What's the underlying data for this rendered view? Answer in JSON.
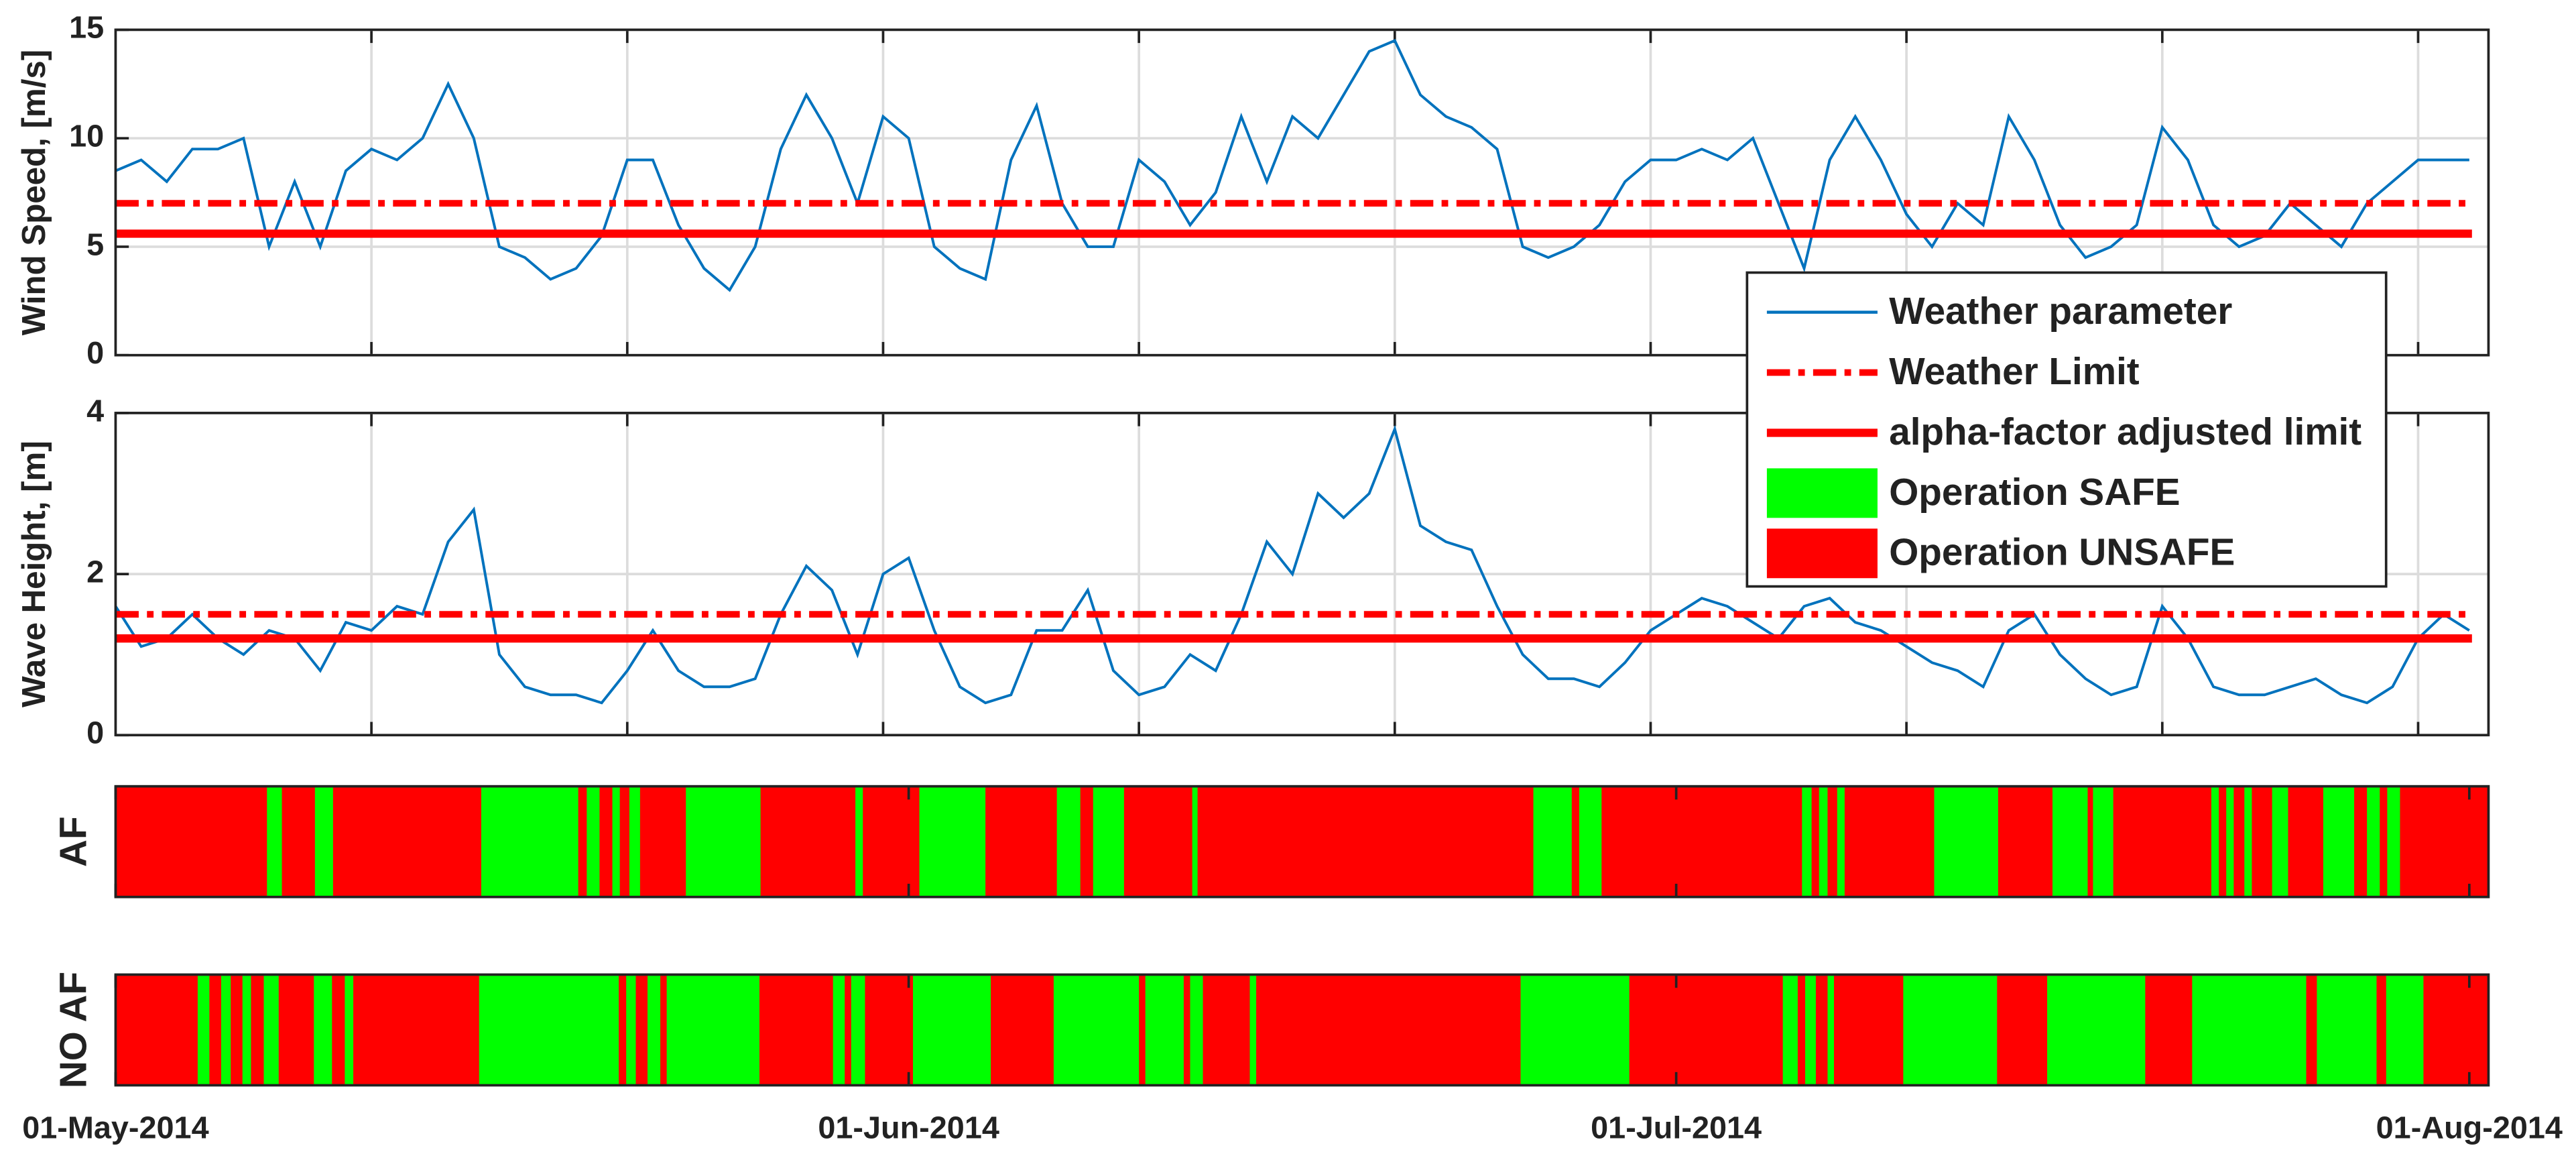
{
  "chart_data": [
    {
      "type": "line",
      "ylabel": "Wind Speed, [m/s]",
      "ylim": [
        0,
        15
      ],
      "yticks": [
        0,
        5,
        10,
        15
      ],
      "grid": true,
      "x": [
        "2014-05-01",
        "2014-05-02",
        "2014-05-03",
        "2014-05-04",
        "2014-05-05",
        "2014-05-06",
        "2014-05-07",
        "2014-05-08",
        "2014-05-09",
        "2014-05-10",
        "2014-05-11",
        "2014-05-12",
        "2014-05-13",
        "2014-05-14",
        "2014-05-15",
        "2014-05-16",
        "2014-05-17",
        "2014-05-18",
        "2014-05-19",
        "2014-05-20",
        "2014-05-21",
        "2014-05-22",
        "2014-05-23",
        "2014-05-24",
        "2014-05-25",
        "2014-05-26",
        "2014-05-27",
        "2014-05-28",
        "2014-05-29",
        "2014-05-30",
        "2014-05-31",
        "2014-06-01",
        "2014-06-02",
        "2014-06-03",
        "2014-06-04",
        "2014-06-05",
        "2014-06-06",
        "2014-06-07",
        "2014-06-08",
        "2014-06-09",
        "2014-06-10",
        "2014-06-11",
        "2014-06-12",
        "2014-06-13",
        "2014-06-14",
        "2014-06-15",
        "2014-06-16",
        "2014-06-17",
        "2014-06-18",
        "2014-06-19",
        "2014-06-20",
        "2014-06-21",
        "2014-06-22",
        "2014-06-23",
        "2014-06-24",
        "2014-06-25",
        "2014-06-26",
        "2014-06-27",
        "2014-06-28",
        "2014-06-29",
        "2014-06-30",
        "2014-07-01",
        "2014-07-02",
        "2014-07-03",
        "2014-07-04",
        "2014-07-05",
        "2014-07-06",
        "2014-07-07",
        "2014-07-08",
        "2014-07-09",
        "2014-07-10",
        "2014-07-11",
        "2014-07-12",
        "2014-07-13",
        "2014-07-14",
        "2014-07-15",
        "2014-07-16",
        "2014-07-17",
        "2014-07-18",
        "2014-07-19",
        "2014-07-20",
        "2014-07-21",
        "2014-07-22",
        "2014-07-23",
        "2014-07-24",
        "2014-07-25",
        "2014-07-26",
        "2014-07-27",
        "2014-07-28",
        "2014-07-29",
        "2014-07-30",
        "2014-07-31",
        "2014-08-01"
      ],
      "series": [
        {
          "name": "Weather parameter",
          "color": "#0072bd",
          "values": [
            8.5,
            9,
            8,
            9.5,
            9.5,
            10,
            5,
            8,
            5,
            8.5,
            9.5,
            9,
            10,
            12.5,
            10,
            5,
            4.5,
            3.5,
            4,
            5.5,
            9,
            9,
            6,
            4,
            3,
            5,
            9.5,
            12,
            10,
            7,
            11,
            10,
            5,
            4,
            3.5,
            9,
            11.5,
            7,
            5,
            5,
            9,
            8,
            6,
            7.5,
            11,
            8,
            11,
            10,
            12,
            14,
            14.5,
            12,
            11,
            10.5,
            9.5,
            5,
            4.5,
            5,
            6,
            8,
            9,
            9,
            9.5,
            9,
            10,
            7,
            4,
            9,
            11,
            9,
            6.5,
            5,
            7,
            6,
            11,
            9,
            6,
            4.5,
            5,
            6,
            10.5,
            9,
            6,
            5,
            5.5,
            7,
            6,
            5,
            7,
            8,
            9,
            9,
            9
          ]
        }
      ],
      "limits": [
        {
          "name": "Weather Limit",
          "value": 7,
          "style": "dashdot",
          "color": "#ff0000"
        },
        {
          "name": "alpha-factor adjusted limit",
          "value": 5.6,
          "style": "solid",
          "color": "#ff0000"
        }
      ]
    },
    {
      "type": "line",
      "ylabel": "Wave Height, [m]",
      "ylim": [
        0,
        4
      ],
      "yticks": [
        0,
        2,
        4
      ],
      "grid": true,
      "x": [
        "2014-05-01",
        "2014-05-02",
        "2014-05-03",
        "2014-05-04",
        "2014-05-05",
        "2014-05-06",
        "2014-05-07",
        "2014-05-08",
        "2014-05-09",
        "2014-05-10",
        "2014-05-11",
        "2014-05-12",
        "2014-05-13",
        "2014-05-14",
        "2014-05-15",
        "2014-05-16",
        "2014-05-17",
        "2014-05-18",
        "2014-05-19",
        "2014-05-20",
        "2014-05-21",
        "2014-05-22",
        "2014-05-23",
        "2014-05-24",
        "2014-05-25",
        "2014-05-26",
        "2014-05-27",
        "2014-05-28",
        "2014-05-29",
        "2014-05-30",
        "2014-05-31",
        "2014-06-01",
        "2014-06-02",
        "2014-06-03",
        "2014-06-04",
        "2014-06-05",
        "2014-06-06",
        "2014-06-07",
        "2014-06-08",
        "2014-06-09",
        "2014-06-10",
        "2014-06-11",
        "2014-06-12",
        "2014-06-13",
        "2014-06-14",
        "2014-06-15",
        "2014-06-16",
        "2014-06-17",
        "2014-06-18",
        "2014-06-19",
        "2014-06-20",
        "2014-06-21",
        "2014-06-22",
        "2014-06-23",
        "2014-06-24",
        "2014-06-25",
        "2014-06-26",
        "2014-06-27",
        "2014-06-28",
        "2014-06-29",
        "2014-06-30",
        "2014-07-01",
        "2014-07-02",
        "2014-07-03",
        "2014-07-04",
        "2014-07-05",
        "2014-07-06",
        "2014-07-07",
        "2014-07-08",
        "2014-07-09",
        "2014-07-10",
        "2014-07-11",
        "2014-07-12",
        "2014-07-13",
        "2014-07-14",
        "2014-07-15",
        "2014-07-16",
        "2014-07-17",
        "2014-07-18",
        "2014-07-19",
        "2014-07-20",
        "2014-07-21",
        "2014-07-22",
        "2014-07-23",
        "2014-07-24",
        "2014-07-25",
        "2014-07-26",
        "2014-07-27",
        "2014-07-28",
        "2014-07-29",
        "2014-07-30",
        "2014-07-31",
        "2014-08-01"
      ],
      "series": [
        {
          "color": "#0072bd",
          "values": [
            1.6,
            1.1,
            1.2,
            1.5,
            1.2,
            1.0,
            1.3,
            1.2,
            0.8,
            1.4,
            1.3,
            1.6,
            1.5,
            2.4,
            2.8,
            1.0,
            0.6,
            0.5,
            0.5,
            0.4,
            0.8,
            1.3,
            0.8,
            0.6,
            0.6,
            0.7,
            1.5,
            2.1,
            1.8,
            1.0,
            2.0,
            2.2,
            1.3,
            0.6,
            0.4,
            0.5,
            1.3,
            1.3,
            1.8,
            0.8,
            0.5,
            0.6,
            1.0,
            0.8,
            1.5,
            2.4,
            2.0,
            3.0,
            2.7,
            3.0,
            3.8,
            2.6,
            2.4,
            2.3,
            1.6,
            1.0,
            0.7,
            0.7,
            0.6,
            0.9,
            1.3,
            1.5,
            1.7,
            1.6,
            1.4,
            1.2,
            1.6,
            1.7,
            1.4,
            1.3,
            1.1,
            0.9,
            0.8,
            0.6,
            1.3,
            1.5,
            1.0,
            0.7,
            0.5,
            0.6,
            1.6,
            1.2,
            0.6,
            0.5,
            0.5,
            0.6,
            0.7,
            0.5,
            0.4,
            0.6,
            1.2,
            1.5,
            1.3
          ]
        }
      ],
      "limits": [
        {
          "value": 1.5,
          "style": "dashdot",
          "color": "#ff0000"
        },
        {
          "value": 1.2,
          "style": "solid",
          "color": "#ff0000"
        }
      ]
    },
    {
      "type": "timeline",
      "ylabel": "AF",
      "safe": {
        "name": "Operation SAFE",
        "color": "#00ff00",
        "intervals": [
          [
            "2014-05-06T22:00",
            "2014-05-07T12:00"
          ],
          [
            "2014-05-08T19:00",
            "2014-05-09T12:00"
          ],
          [
            "2014-05-15T07:00",
            "2014-05-19T02:00"
          ],
          [
            "2014-05-19T10:00",
            "2014-05-19T22:00"
          ],
          [
            "2014-05-20T10:00",
            "2014-05-20T17:00"
          ],
          [
            "2014-05-21T02:00",
            "2014-05-21T12:00"
          ],
          [
            "2014-05-23T07:00",
            "2014-05-26T05:00"
          ],
          [
            "2014-05-29T22:00",
            "2014-05-30T05:00"
          ],
          [
            "2014-06-01T10:00",
            "2014-06-04T00:00"
          ],
          [
            "2014-06-06T19:00",
            "2014-06-07T17:00"
          ],
          [
            "2014-06-08T05:00",
            "2014-06-09T10:00"
          ],
          [
            "2014-06-12T02:00",
            "2014-06-12T07:00"
          ],
          [
            "2014-06-25T10:00",
            "2014-06-26T22:00"
          ],
          [
            "2014-06-27T05:00",
            "2014-06-28T02:00"
          ],
          [
            "2014-07-05T22:00",
            "2014-07-06T07:00"
          ],
          [
            "2014-07-06T14:00",
            "2014-07-06T22:00"
          ],
          [
            "2014-07-07T07:00",
            "2014-07-07T14:00"
          ],
          [
            "2014-07-11T02:00",
            "2014-07-13T14:00"
          ],
          [
            "2014-07-15T17:00",
            "2014-07-17T02:00"
          ],
          [
            "2014-07-17T07:00",
            "2014-07-18T02:00"
          ],
          [
            "2014-07-21T22:00",
            "2014-07-22T05:00"
          ],
          [
            "2014-07-22T12:00",
            "2014-07-22T19:00"
          ],
          [
            "2014-07-23T05:00",
            "2014-07-23T12:00"
          ],
          [
            "2014-07-24T07:00",
            "2014-07-24T22:00"
          ],
          [
            "2014-07-26T07:00",
            "2014-07-27T12:00"
          ],
          [
            "2014-07-28T00:00",
            "2014-07-28T12:00"
          ],
          [
            "2014-07-28T19:00",
            "2014-07-29T07:00"
          ]
        ]
      },
      "unsafe": {
        "name": "Operation UNSAFE",
        "color": "#ff0000"
      }
    },
    {
      "type": "timeline",
      "ylabel": "NO AF",
      "safe": {
        "color": "#00ff00",
        "intervals": [
          [
            "2014-05-04T05:00",
            "2014-05-04T16:00"
          ],
          [
            "2014-05-05T03:00",
            "2014-05-05T12:00"
          ],
          [
            "2014-05-05T23:00",
            "2014-05-06T07:00"
          ],
          [
            "2014-05-06T19:00",
            "2014-05-07T09:00"
          ],
          [
            "2014-05-08T18:00",
            "2014-05-09T11:00"
          ],
          [
            "2014-05-09T23:00",
            "2014-05-10T07:00"
          ],
          [
            "2014-05-15T05:00",
            "2014-05-20T16:00"
          ],
          [
            "2014-05-20T23:00",
            "2014-05-21T08:00"
          ],
          [
            "2014-05-21T19:00",
            "2014-05-22T07:00"
          ],
          [
            "2014-05-22T13:00",
            "2014-05-26T04:00"
          ],
          [
            "2014-05-29T01:00",
            "2014-05-29T12:00"
          ],
          [
            "2014-05-29T18:00",
            "2014-05-30T07:00"
          ],
          [
            "2014-06-01T04:00",
            "2014-06-04T05:00"
          ],
          [
            "2014-06-06T16:00",
            "2014-06-10T00:00"
          ],
          [
            "2014-06-10T06:00",
            "2014-06-11T18:00"
          ],
          [
            "2014-06-12T00:00",
            "2014-06-12T12:00"
          ],
          [
            "2014-06-14T08:00",
            "2014-06-14T14:00"
          ],
          [
            "2014-06-24T22:00",
            "2014-06-29T04:00"
          ],
          [
            "2014-07-05T04:00",
            "2014-07-05T18:00"
          ],
          [
            "2014-07-06T01:00",
            "2014-07-06T11:00"
          ],
          [
            "2014-07-06T22:00",
            "2014-07-07T04:00"
          ],
          [
            "2014-07-09T21:00",
            "2014-07-13T13:00"
          ],
          [
            "2014-07-15T12:00",
            "2014-07-19T08:00"
          ],
          [
            "2014-07-21T04:00",
            "2014-07-25T15:00"
          ],
          [
            "2014-07-26T01:00",
            "2014-07-28T09:00"
          ],
          [
            "2014-07-28T18:00",
            "2014-07-30T05:00"
          ]
        ]
      },
      "unsafe": {
        "color": "#ff0000"
      }
    }
  ],
  "x_axis": {
    "xlim": [
      "2014-05-01",
      "2014-08-01T18:00"
    ],
    "xticks": [
      {
        "value": "2014-05-01",
        "label": "01-May-2014"
      },
      {
        "value": "2014-06-01",
        "label": "01-Jun-2014"
      },
      {
        "value": "2014-07-01",
        "label": "01-Jul-2014"
      },
      {
        "value": "2014-08-01",
        "label": "01-Aug-2014"
      }
    ],
    "grid_ticks": [
      "2014-05-11",
      "2014-05-21",
      "2014-05-31",
      "2014-06-10",
      "2014-06-20",
      "2014-06-30",
      "2014-07-10",
      "2014-07-20",
      "2014-07-30"
    ]
  }
}
